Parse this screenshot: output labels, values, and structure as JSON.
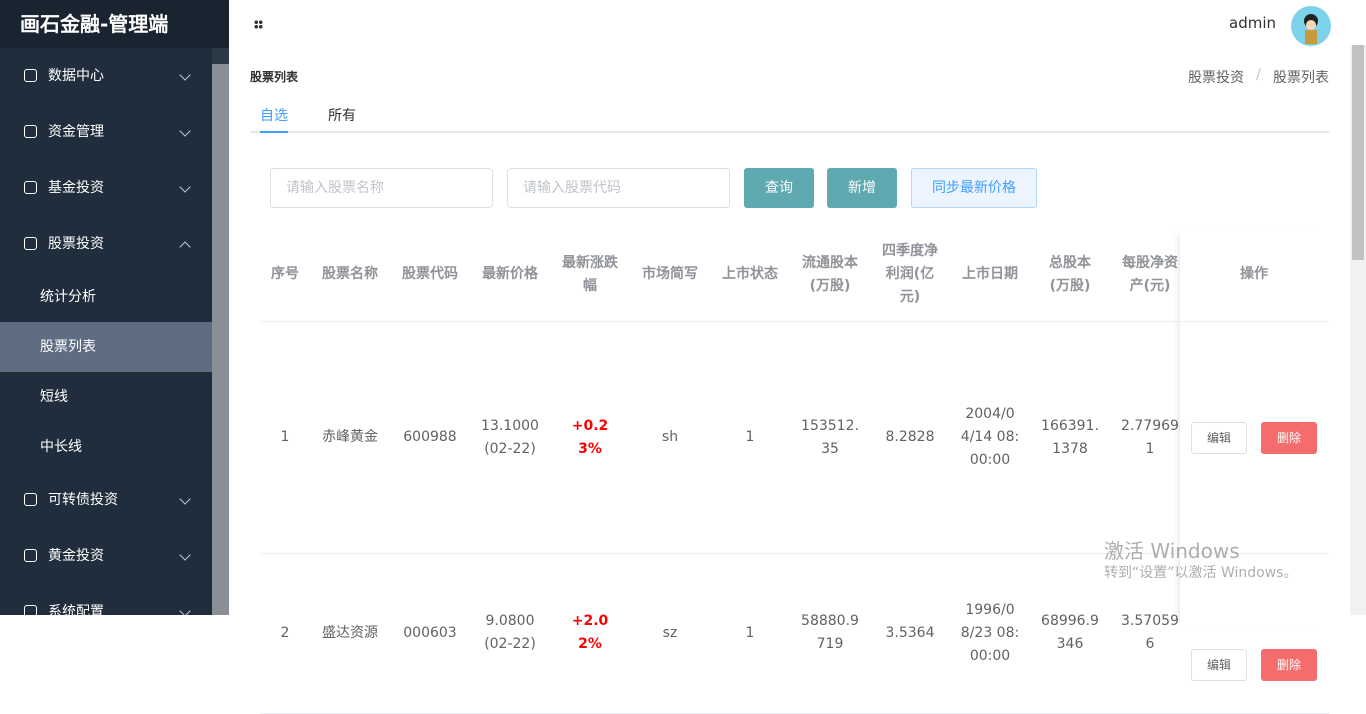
{
  "sidebar": {
    "title": "画石金融-管理端",
    "menu": [
      {
        "label": "数据中心"
      },
      {
        "label": "资金管理"
      },
      {
        "label": "基金投资"
      },
      {
        "label": "股票投资",
        "children": [
          "统计分析",
          "股票列表",
          "短线",
          "中长线"
        ]
      },
      {
        "label": "可转债投资"
      },
      {
        "label": "黄金投资"
      },
      {
        "label": "系统配置"
      }
    ]
  },
  "header": {
    "user": "admin"
  },
  "page": {
    "title": "股票列表",
    "breadcrumb": [
      "股票投资",
      "股票列表"
    ],
    "separator": "/",
    "tabs": [
      "自选",
      "所有"
    ],
    "filters": [
      "请输入股票名称",
      "请输入股票代码"
    ],
    "buttons": [
      "查询",
      "新增",
      "同步最新价格"
    ]
  },
  "table": {
    "columns": [
      "序号",
      "股票名称",
      "股票代码",
      "最新价格",
      "最新涨跌幅",
      "市场简写",
      "上市状态",
      "流通股本(万股)",
      "四季度净利润(亿元)",
      "上市日期",
      "总股本(万股)",
      "每股净资产(元)",
      "操作"
    ],
    "rows": [
      [
        "1",
        "赤峰黄金",
        "600988",
        "13.1000(02-22)",
        "+0.23%",
        "sh",
        "1",
        "153512.35",
        "8.2828",
        "2004/04/14 08:00:00",
        "166391.1378",
        "2.779691"
      ],
      [
        "2",
        "盛达资源",
        "000603",
        "9.0800(02-22)",
        "+2.02%",
        "sz",
        "1",
        "58880.9719",
        "3.5364",
        "1996/08/23 08:00:00",
        "68996.9346",
        "3.570596"
      ]
    ],
    "actions": [
      "编辑",
      "删除"
    ]
  },
  "watermark": {
    "title": "激活 Windows",
    "subtitle": "转到“设置”以激活 Windows。"
  }
}
